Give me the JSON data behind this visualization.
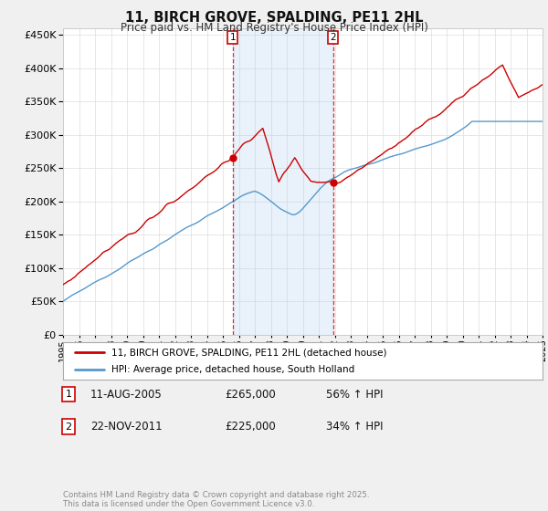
{
  "title": "11, BIRCH GROVE, SPALDING, PE11 2HL",
  "subtitle": "Price paid vs. HM Land Registry's House Price Index (HPI)",
  "ylim": [
    0,
    460000
  ],
  "yticks": [
    0,
    50000,
    100000,
    150000,
    200000,
    250000,
    300000,
    350000,
    400000,
    450000
  ],
  "line1_color": "#cc0000",
  "line2_color": "#5599cc",
  "fill_color": "#aaccee",
  "line1_label": "11, BIRCH GROVE, SPALDING, PE11 2HL (detached house)",
  "line2_label": "HPI: Average price, detached house, South Holland",
  "annotation1_label": "1",
  "annotation1_date": "11-AUG-2005",
  "annotation1_price": "£265,000",
  "annotation1_hpi": "56% ↑ HPI",
  "annotation1_year": 2005.62,
  "annotation2_label": "2",
  "annotation2_date": "22-NOV-2011",
  "annotation2_price": "£225,000",
  "annotation2_hpi": "34% ↑ HPI",
  "annotation2_year": 2011.9,
  "footer": "Contains HM Land Registry data © Crown copyright and database right 2025.\nThis data is licensed under the Open Government Licence v3.0.",
  "background_color": "#f0f0f0",
  "plot_background": "#ffffff",
  "grid_color": "#dddddd",
  "x_start_year": 1995,
  "x_end_year": 2025
}
